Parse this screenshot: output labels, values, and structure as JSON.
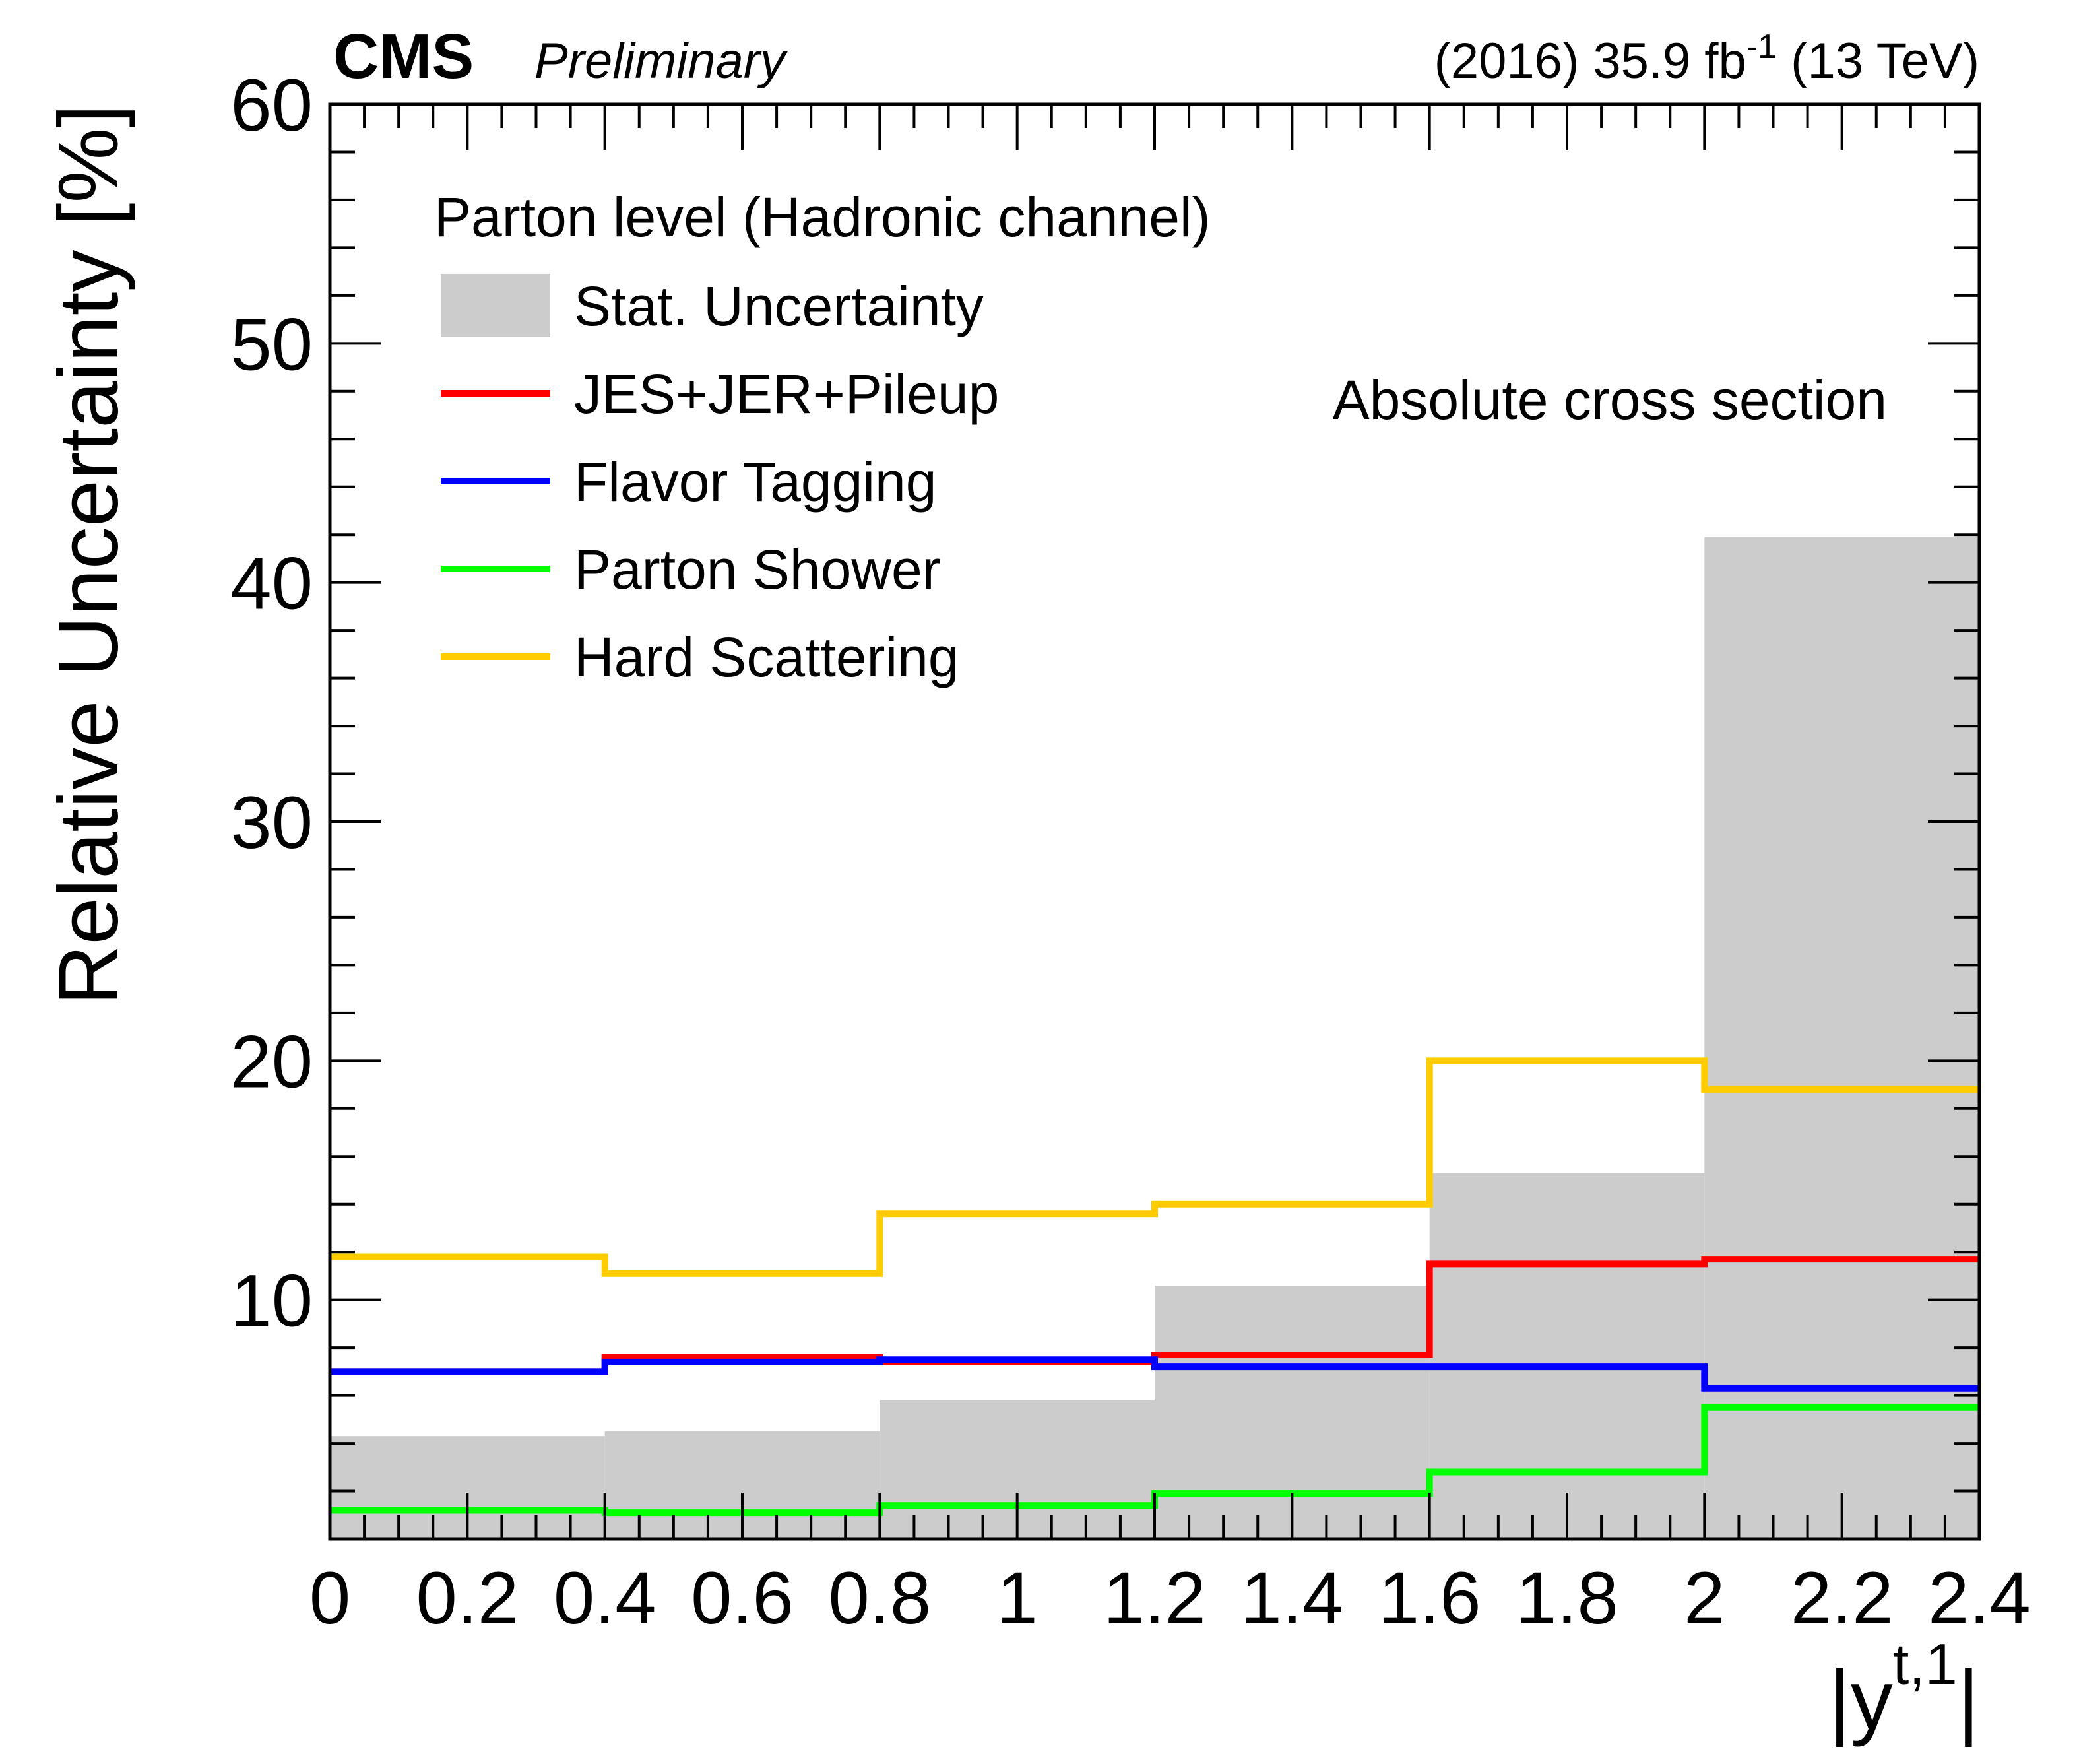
{
  "header": {
    "experiment": "CMS",
    "status": "Preliminary",
    "lumi_year": "(2016) 35.9 fb",
    "lumi_sup": "-1",
    "lumi_energy": " (13 TeV)"
  },
  "legend": {
    "header": "Parton level (Hadronic channel)"
  },
  "annotation": "Absolute cross section",
  "chart_data": {
    "type": "histogram",
    "xlabel_base": "|y",
    "xlabel_sup": "t,1",
    "xlabel_end": "|",
    "ylabel": "Relative Uncertainty [%]",
    "xlim": [
      0,
      2.4
    ],
    "ylim": [
      0,
      60
    ],
    "x_ticks": [
      "0",
      "0.2",
      "0.4",
      "0.6",
      "0.8",
      "1",
      "1.2",
      "1.4",
      "1.6",
      "1.8",
      "2",
      "2.2",
      "2.4"
    ],
    "x_tick_values": [
      0,
      0.2,
      0.4,
      0.6,
      0.8,
      1.0,
      1.2,
      1.4,
      1.6,
      1.8,
      2.0,
      2.2,
      2.4
    ],
    "y_ticks": [
      "10",
      "20",
      "30",
      "40",
      "50",
      "60"
    ],
    "y_tick_values": [
      10,
      20,
      30,
      40,
      50,
      60
    ],
    "bin_edges": [
      0,
      0.4,
      0.8,
      1.2,
      1.6,
      2.0,
      2.4
    ],
    "series": [
      {
        "name": "Stat. Uncertainty",
        "style": "fill",
        "color": "#cccccc",
        "values": [
          4.3,
          4.5,
          5.8,
          10.6,
          15.3,
          41.9
        ]
      },
      {
        "name": "JES+JER+Pileup",
        "style": "line",
        "color": "#ff0000",
        "values": [
          7.0,
          7.6,
          7.4,
          7.7,
          11.5,
          11.7
        ]
      },
      {
        "name": "Flavor Tagging",
        "style": "line",
        "color": "#0000ff",
        "values": [
          7.0,
          7.4,
          7.5,
          7.2,
          7.2,
          6.3
        ]
      },
      {
        "name": "Parton Shower",
        "style": "line",
        "color": "#00ff00",
        "values": [
          1.2,
          1.1,
          1.4,
          1.9,
          2.8,
          5.5
        ]
      },
      {
        "name": "Hard Scattering",
        "style": "line",
        "color": "#ffcc00",
        "values": [
          11.8,
          11.1,
          13.6,
          14.0,
          20.0,
          18.8
        ]
      }
    ],
    "grid": false
  }
}
